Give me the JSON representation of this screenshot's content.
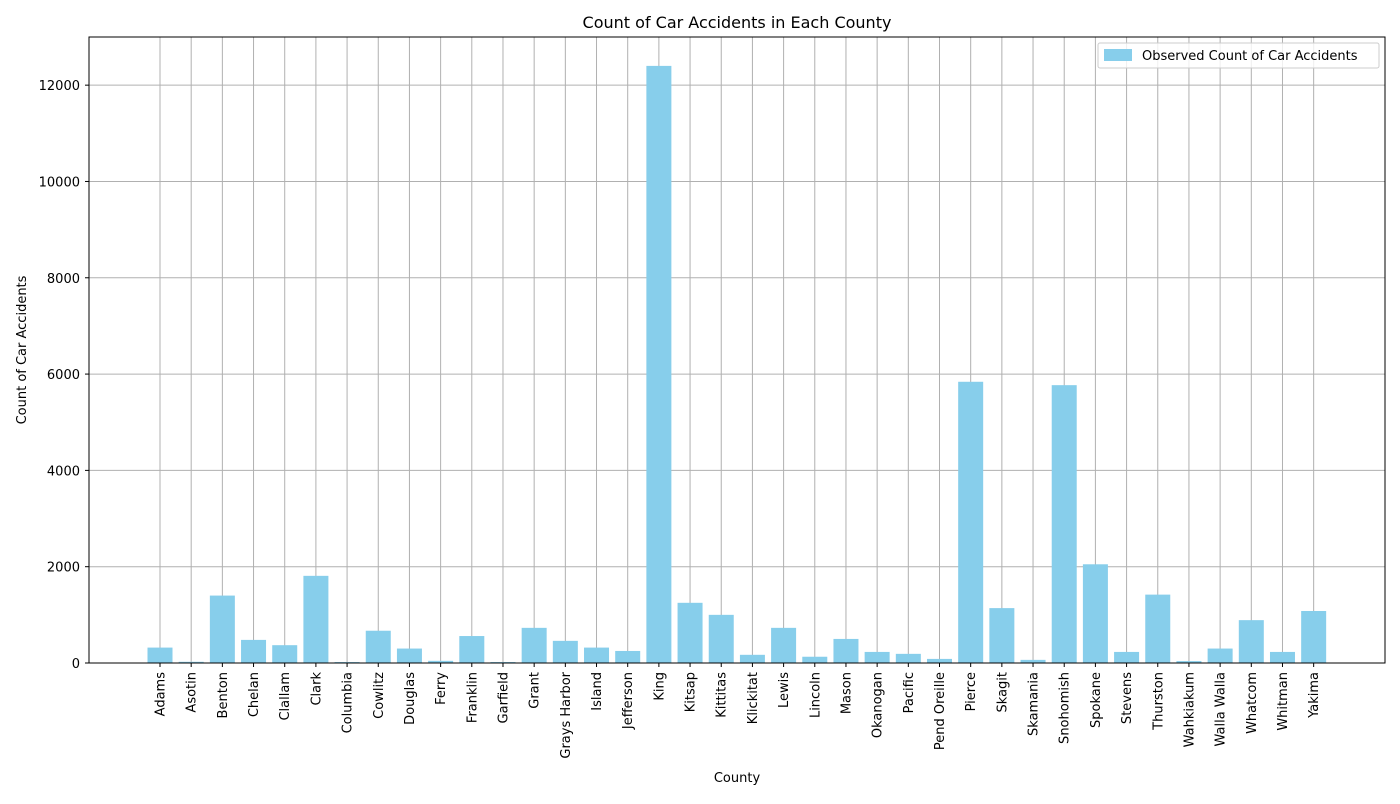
{
  "chart_data": {
    "type": "bar",
    "title": "Count of Car Accidents in Each County",
    "xlabel": "County",
    "ylabel": "Count of Car Accidents",
    "ylim": [
      0,
      13000
    ],
    "yticks": [
      0,
      2000,
      4000,
      6000,
      8000,
      10000,
      12000
    ],
    "grid": true,
    "legend_position": "top-right",
    "bar_color": "#87ceeb",
    "series": [
      {
        "name": "Observed Count of Car Accidents",
        "values": [
          320,
          25,
          1400,
          480,
          370,
          1810,
          20,
          670,
          300,
          45,
          560,
          20,
          730,
          460,
          320,
          250,
          12400,
          1250,
          1000,
          170,
          730,
          130,
          500,
          230,
          190,
          85,
          5840,
          1140,
          65,
          5770,
          2050,
          230,
          1420,
          40,
          300,
          890,
          230,
          1080
        ]
      }
    ],
    "categories": [
      "Adams",
      "Asotin",
      "Benton",
      "Chelan",
      "Clallam",
      "Clark",
      "Columbia",
      "Cowlitz",
      "Douglas",
      "Ferry",
      "Franklin",
      "Garfield",
      "Grant",
      "Grays Harbor",
      "Island",
      "Jefferson",
      "King",
      "Kitsap",
      "Kittitas",
      "Klickitat",
      "Lewis",
      "Lincoln",
      "Mason",
      "Okanogan",
      "Pacific",
      "Pend Oreille",
      "Pierce",
      "Skagit",
      "Skamania",
      "Snohomish",
      "Spokane",
      "Stevens",
      "Thurston",
      "Wahkiakum",
      "Walla Walla",
      "Whatcom",
      "Whitman",
      "Yakima"
    ]
  }
}
